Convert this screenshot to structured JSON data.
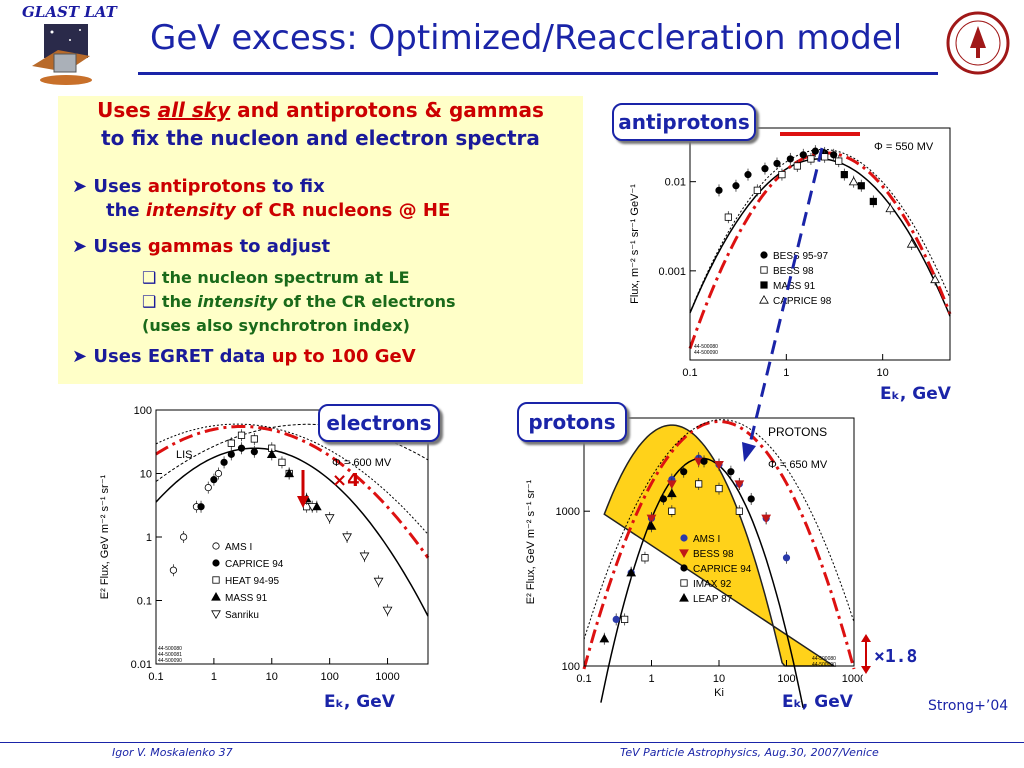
{
  "logo_text": "GLAST LAT",
  "title": "GeV excess: Optimized/Reaccleration model",
  "box": {
    "header_pre": "Uses ",
    "header_underline": "all sky",
    "header_post": " and antiprotons & gammas",
    "header_line2": "to fix the nucleon and electron spectra",
    "b1_a": "Uses ",
    "b1_b": "antiprotons",
    "b1_c": " to fix",
    "b1_d": "the ",
    "b1_e": "intensity",
    "b1_f": " of CR nucleons @ HE",
    "b2_a": "Uses ",
    "b2_b": "gammas",
    "b2_c": " to adjust",
    "s1": "the nucleon spectrum at LE",
    "s2_a": "the ",
    "s2_b": "intensity",
    "s2_c": " of the CR electrons",
    "s3": "(uses also synchrotron index)",
    "b3_a": "Uses EGRET data ",
    "b3_b": "up to 100 GeV"
  },
  "tags": {
    "antiprotons": "antiprotons",
    "electrons": "electrons",
    "protons": "protons"
  },
  "ek_label": "Eₖ, GeV",
  "x4": "×4",
  "x18": "×1.8",
  "credit": "Strong+’04",
  "footer_left": "Igor V. Moskalenko  37",
  "footer_right": "TeV Particle Astrophysics, Aug.30, 2007/Venice",
  "colors": {
    "title": "#1a24a8",
    "box_bg": "#ffffc8",
    "model_red": "#dd1111",
    "protons_fill": "#ffd21a"
  },
  "chart_data": [
    {
      "name": "antiprotons",
      "type": "line",
      "ylabel": "Flux, m⁻² s⁻¹ sr⁻¹ GeV⁻¹",
      "xlabel": "",
      "xscale": "log",
      "yscale": "log",
      "xlim": [
        0.1,
        50
      ],
      "ylim": [
        0.0001,
        0.04
      ],
      "xticks": [
        "0.1",
        "1",
        "10"
      ],
      "yticks": [
        "0.001",
        "0.01"
      ],
      "phi_label": "Φ = 550 MV",
      "legend": [
        "BESS 95-97",
        "BESS 98",
        "MASS 91",
        "CAPRICE 98"
      ],
      "codes": [
        "44-500080",
        "44-500090"
      ],
      "series": [
        {
          "name": "BESS 95-97",
          "x": [
            0.2,
            0.3,
            0.4,
            0.6,
            0.8,
            1.1,
            1.5,
            2.0,
            2.5,
            3.1
          ],
          "y": [
            0.008,
            0.009,
            0.012,
            0.014,
            0.016,
            0.018,
            0.02,
            0.022,
            0.021,
            0.02
          ]
        },
        {
          "name": "BESS 98",
          "x": [
            0.25,
            0.5,
            0.9,
            1.3,
            1.8,
            2.5,
            3.5
          ],
          "y": [
            0.004,
            0.008,
            0.012,
            0.015,
            0.018,
            0.019,
            0.017
          ]
        },
        {
          "name": "MASS 91",
          "x": [
            4,
            6,
            8
          ],
          "y": [
            0.012,
            0.009,
            0.006
          ]
        },
        {
          "name": "CAPRICE 98",
          "x": [
            5,
            12,
            20,
            35
          ],
          "y": [
            0.01,
            0.005,
            0.002,
            0.0008
          ]
        }
      ]
    },
    {
      "name": "electrons",
      "type": "line",
      "ylabel": "E² Flux, GeV m⁻² s⁻¹ sr⁻¹",
      "xlabel": "",
      "xscale": "log",
      "yscale": "log",
      "xlim": [
        0.1,
        5000
      ],
      "ylim": [
        0.01,
        100
      ],
      "xticks": [
        "0.1",
        "1",
        "10",
        "100",
        "1000"
      ],
      "yticks": [
        "0.01",
        "0.1",
        "1",
        "10",
        "100"
      ],
      "phi_label": "Φ = 600 MV",
      "lis_label": "LIS",
      "legend": [
        "AMS I",
        "CAPRICE 94",
        "HEAT 94-95",
        "MASS 91",
        "Sanriku"
      ],
      "codes": [
        "44-500080",
        "44-500081",
        "44-500090"
      ],
      "series": [
        {
          "name": "AMS I",
          "x": [
            0.2,
            0.3,
            0.5,
            0.8,
            1.2
          ],
          "y": [
            0.3,
            1.0,
            3.0,
            6.0,
            10
          ]
        },
        {
          "name": "CAPRICE 94",
          "x": [
            0.6,
            1,
            1.5,
            2,
            3,
            5
          ],
          "y": [
            3.0,
            8.0,
            15,
            20,
            25,
            22
          ]
        },
        {
          "name": "HEAT 94-95",
          "x": [
            2,
            3,
            5,
            10,
            15,
            20,
            40
          ],
          "y": [
            30,
            40,
            35,
            25,
            15,
            10,
            3
          ]
        },
        {
          "name": "MASS 91",
          "x": [
            10,
            20,
            40,
            60
          ],
          "y": [
            20,
            10,
            4,
            3
          ]
        },
        {
          "name": "Sanriku",
          "x": [
            50,
            100,
            200,
            400,
            700,
            1000
          ],
          "y": [
            3,
            2,
            1,
            0.5,
            0.2,
            0.07
          ]
        }
      ]
    },
    {
      "name": "protons",
      "type": "line",
      "ylabel": "E² Flux, GeV m⁻² s⁻¹ sr⁻¹",
      "xlabel": "Ki",
      "xscale": "log",
      "yscale": "log",
      "xlim": [
        0.1,
        1000
      ],
      "ylim": [
        100,
        4000
      ],
      "xticks": [
        "0.1",
        "1",
        "10",
        "100",
        "1000"
      ],
      "yticks": [
        "100",
        "1000"
      ],
      "title": "PROTONS",
      "phi_label": "Φ = 650 MV",
      "legend": [
        "AMS I",
        "BESS 98",
        "CAPRICE 94",
        "IMAX 92",
        "LEAP 87"
      ],
      "codes": [
        "44-500080",
        "44-500090"
      ],
      "series": [
        {
          "name": "AMS I",
          "x": [
            0.3,
            0.5,
            1,
            2,
            5,
            10,
            20,
            50,
            100
          ],
          "y": [
            200,
            400,
            900,
            1600,
            2200,
            2000,
            1500,
            900,
            500
          ]
        },
        {
          "name": "BESS 98",
          "x": [
            1,
            2,
            5,
            10,
            20,
            50
          ],
          "y": [
            900,
            1500,
            2100,
            2000,
            1500,
            900
          ]
        },
        {
          "name": "CAPRICE 94",
          "x": [
            1.5,
            3,
            6,
            15,
            30
          ],
          "y": [
            1200,
            1800,
            2100,
            1800,
            1200
          ]
        },
        {
          "name": "IMAX 92",
          "x": [
            0.4,
            0.8,
            2,
            5,
            10,
            20
          ],
          "y": [
            200,
            500,
            1000,
            1500,
            1400,
            1000
          ]
        },
        {
          "name": "LEAP 87",
          "x": [
            0.2,
            0.5,
            1,
            2
          ],
          "y": [
            150,
            400,
            800,
            1300
          ]
        }
      ]
    }
  ]
}
